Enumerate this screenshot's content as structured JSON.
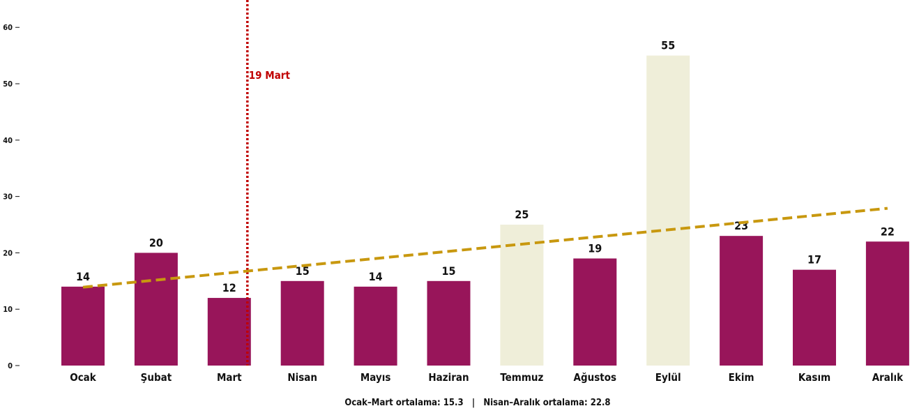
{
  "chart_data": {
    "type": "bar",
    "categories": [
      "Ocak",
      "Şubat",
      "Mart",
      "Nisan",
      "Mayıs",
      "Haziran",
      "Temmuz",
      "Ağustos",
      "Eylül",
      "Ekim",
      "Kasım",
      "Aralık"
    ],
    "values": [
      14,
      20,
      12,
      15,
      14,
      15,
      25,
      19,
      55,
      23,
      17,
      22
    ],
    "highlighted_categories": [
      "Temmuz",
      "Eylül"
    ],
    "ylim": [
      0,
      63
    ],
    "yticks": [
      0,
      10,
      20,
      30,
      40,
      50,
      60
    ],
    "grid": false,
    "colors": {
      "bar": "#98155a",
      "bar_highlight": "#efeed9",
      "trendline": "#c8980f",
      "annotation": "#c00000"
    },
    "trendline": {
      "style": "dashed",
      "start": 13.9,
      "end": 27.9
    },
    "annotation": {
      "label": "19 Mart",
      "style": "dotted-vertical-line",
      "position": "between Mart and Nisan"
    },
    "footer_note": "Ocak–Mart ortalama: 15.3   |   Nisan–Aralık ortalama: 22.8"
  }
}
